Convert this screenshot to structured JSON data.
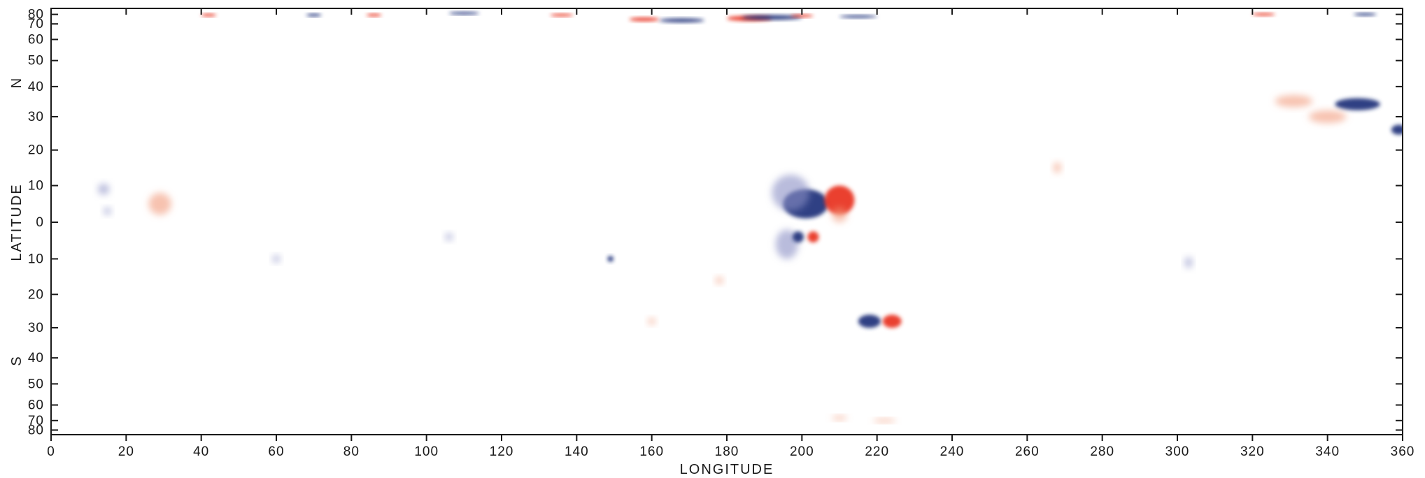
{
  "chart_data": {
    "type": "heatmap",
    "xlabel": "LONGITUDE",
    "ylabel": "LATITUDE",
    "hemisphere_labels": {
      "north": "N",
      "south": "S"
    },
    "xlim": [
      0,
      360
    ],
    "x_ticks": [
      0,
      20,
      40,
      60,
      80,
      100,
      120,
      140,
      160,
      180,
      200,
      220,
      240,
      260,
      280,
      300,
      320,
      340,
      360
    ],
    "y_tick_labels_north": [
      "80",
      "70",
      "60",
      "50",
      "40",
      "30",
      "20",
      "10"
    ],
    "y_tick_values_north": [
      80,
      70,
      60,
      50,
      40,
      30,
      20,
      10
    ],
    "y_tick_label_zero": "0",
    "y_tick_labels_south": [
      "10",
      "20",
      "30",
      "40",
      "50",
      "60",
      "70",
      "80"
    ],
    "y_tick_values_south": [
      -10,
      -20,
      -30,
      -40,
      -50,
      -60,
      -70,
      -80
    ],
    "ylim": [
      -90,
      90
    ],
    "y_scale": "sine-latitude",
    "colors": {
      "positive": "#e8321e",
      "negative": "#1f2f7a",
      "positive_faint": "#f29a7a",
      "negative_faint": "#8a8fc4"
    },
    "regions": [
      {
        "polarity": "negative",
        "lon": 201,
        "lat": 5,
        "dlon": 6,
        "dlat": 4,
        "strength": "strong"
      },
      {
        "polarity": "negative",
        "lon": 197,
        "lat": 8,
        "dlon": 5,
        "dlat": 5,
        "strength": "weak"
      },
      {
        "polarity": "negative",
        "lon": 196,
        "lat": -6,
        "dlon": 3,
        "dlat": 4,
        "strength": "weak"
      },
      {
        "polarity": "negative",
        "lon": 199,
        "lat": -4,
        "dlon": 1.5,
        "dlat": 1.5,
        "strength": "strong"
      },
      {
        "polarity": "positive",
        "lon": 210,
        "lat": 6,
        "dlon": 4,
        "dlat": 4,
        "strength": "strong"
      },
      {
        "polarity": "positive",
        "lon": 210,
        "lat": 2,
        "dlon": 2,
        "dlat": 2,
        "strength": "weak"
      },
      {
        "polarity": "positive",
        "lon": 203,
        "lat": -4,
        "dlon": 1.5,
        "dlat": 1.5,
        "strength": "strong"
      },
      {
        "polarity": "negative",
        "lon": 218,
        "lat": -28,
        "dlon": 3,
        "dlat": 2,
        "strength": "strong"
      },
      {
        "polarity": "positive",
        "lon": 224,
        "lat": -28,
        "dlon": 2.5,
        "dlat": 2,
        "strength": "strong"
      },
      {
        "polarity": "negative",
        "lon": 348,
        "lat": 34,
        "dlon": 6,
        "dlat": 2,
        "strength": "strong"
      },
      {
        "polarity": "positive",
        "lon": 331,
        "lat": 35,
        "dlon": 5,
        "dlat": 2,
        "strength": "weak"
      },
      {
        "polarity": "positive",
        "lon": 340,
        "lat": 30,
        "dlon": 5,
        "dlat": 2,
        "strength": "weak"
      },
      {
        "polarity": "negative",
        "lon": 359,
        "lat": 26,
        "dlon": 2,
        "dlat": 1.5,
        "strength": "strong"
      },
      {
        "polarity": "positive",
        "lon": 29,
        "lat": 5,
        "dlon": 3,
        "dlat": 3,
        "strength": "weak"
      },
      {
        "polarity": "negative",
        "lon": 14,
        "lat": 9,
        "dlon": 1.5,
        "dlat": 1.5,
        "strength": "weak"
      },
      {
        "polarity": "negative",
        "lon": 15,
        "lat": 3,
        "dlon": 1,
        "dlat": 1,
        "strength": "weak"
      },
      {
        "polarity": "negative",
        "lon": 106,
        "lat": -4,
        "dlon": 1,
        "dlat": 1,
        "strength": "weak"
      },
      {
        "polarity": "negative",
        "lon": 149,
        "lat": -10,
        "dlon": 0.8,
        "dlat": 0.8,
        "strength": "strong"
      },
      {
        "polarity": "negative",
        "lon": 60,
        "lat": -10,
        "dlon": 1,
        "dlat": 1,
        "strength": "weak"
      },
      {
        "polarity": "positive",
        "lon": 268,
        "lat": 15,
        "dlon": 1,
        "dlat": 1.5,
        "strength": "weak"
      },
      {
        "polarity": "negative",
        "lon": 303,
        "lat": -11,
        "dlon": 1,
        "dlat": 1.5,
        "strength": "weak"
      },
      {
        "polarity": "positive",
        "lon": 186,
        "lat": 75,
        "dlon": 6,
        "dlat": 3,
        "strength": "strong"
      },
      {
        "polarity": "negative",
        "lon": 192,
        "lat": 76,
        "dlon": 8,
        "dlat": 3,
        "strength": "strong"
      },
      {
        "polarity": "negative",
        "lon": 168,
        "lat": 73,
        "dlon": 6,
        "dlat": 2,
        "strength": "strong"
      },
      {
        "polarity": "positive",
        "lon": 158,
        "lat": 74,
        "dlon": 4,
        "dlat": 2,
        "strength": "strong"
      },
      {
        "polarity": "positive",
        "lon": 200,
        "lat": 78,
        "dlon": 3,
        "dlat": 2,
        "strength": "strong"
      },
      {
        "polarity": "negative",
        "lon": 215,
        "lat": 77,
        "dlon": 5,
        "dlat": 1.5,
        "strength": "strong"
      },
      {
        "polarity": "positive",
        "lon": 42,
        "lat": 79,
        "dlon": 2,
        "dlat": 1,
        "strength": "strong"
      },
      {
        "polarity": "negative",
        "lon": 70,
        "lat": 79,
        "dlon": 2,
        "dlat": 1,
        "strength": "strong"
      },
      {
        "polarity": "positive",
        "lon": 86,
        "lat": 79,
        "dlon": 2,
        "dlat": 1,
        "strength": "strong"
      },
      {
        "polarity": "positive",
        "lon": 136,
        "lat": 79,
        "dlon": 3,
        "dlat": 1,
        "strength": "strong"
      },
      {
        "polarity": "negative",
        "lon": 110,
        "lat": 82,
        "dlon": 4,
        "dlat": 0.8,
        "strength": "strong"
      },
      {
        "polarity": "positive",
        "lon": 323,
        "lat": 80,
        "dlon": 3,
        "dlat": 1,
        "strength": "strong"
      },
      {
        "polarity": "negative",
        "lon": 350,
        "lat": 80,
        "dlon": 3,
        "dlat": 1,
        "strength": "strong"
      },
      {
        "polarity": "positive",
        "lon": 222,
        "lat": -70,
        "dlon": 3,
        "dlat": 1.5,
        "strength": "weak"
      },
      {
        "polarity": "positive",
        "lon": 210,
        "lat": -68,
        "dlon": 2,
        "dlat": 1.5,
        "strength": "weak"
      },
      {
        "polarity": "positive",
        "lon": 178,
        "lat": -16,
        "dlon": 1,
        "dlat": 1,
        "strength": "weak"
      },
      {
        "polarity": "positive",
        "lon": 160,
        "lat": -28,
        "dlon": 1,
        "dlat": 1,
        "strength": "weak"
      }
    ]
  }
}
